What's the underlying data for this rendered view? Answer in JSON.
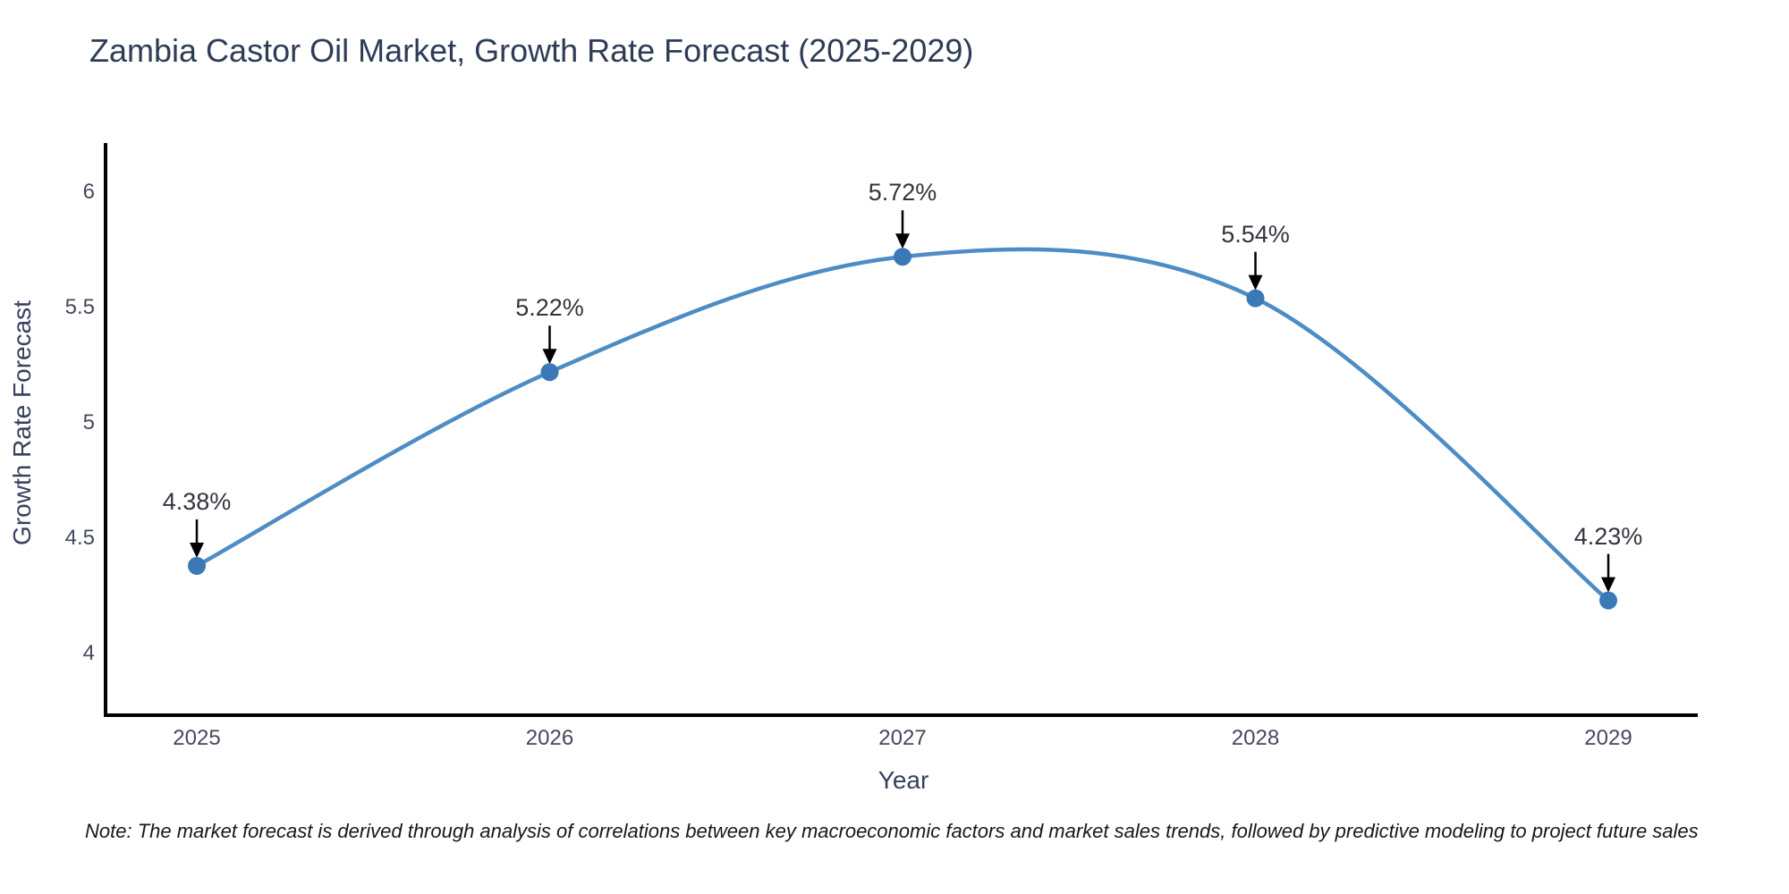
{
  "title": "Zambia Castor Oil Market, Growth Rate Forecast (2025-2029)",
  "note": "Note: The market forecast is derived through analysis of correlations between key macroeconomic factors and market sales trends, followed by predictive modeling to project future sales",
  "x_axis": {
    "label": "Year",
    "ticks": [
      "2025",
      "2026",
      "2027",
      "2028",
      "2029"
    ]
  },
  "y_axis": {
    "label": "Growth Rate Forecast",
    "ticks": [
      "4",
      "4.5",
      "5",
      "5.5",
      "6"
    ]
  },
  "chart_data": {
    "type": "line",
    "line_shape": "spline",
    "title": "Zambia Castor Oil Market, Growth Rate Forecast (2025-2029)",
    "xlabel": "Year",
    "ylabel": "Growth Rate Forecast",
    "x": [
      2025,
      2026,
      2027,
      2028,
      2029
    ],
    "values": [
      4.38,
      5.22,
      5.72,
      5.54,
      4.23
    ],
    "point_labels": [
      "4.38%",
      "5.22%",
      "5.72%",
      "5.54%",
      "4.23%"
    ],
    "y_ticks": [
      4,
      4.5,
      5,
      5.5,
      6
    ],
    "xlim": [
      2024.74,
      2029.26
    ],
    "ylim": [
      3.73,
      6.21
    ],
    "grid": false,
    "legend": false,
    "colors": {
      "line": "#4e8cc4",
      "marker": "#3a78b8",
      "spine": "#000000",
      "arrow": "#000000",
      "title_text": "#2e3c56",
      "tick_text": "#444a5a",
      "annotation_text": "#31353d"
    }
  }
}
